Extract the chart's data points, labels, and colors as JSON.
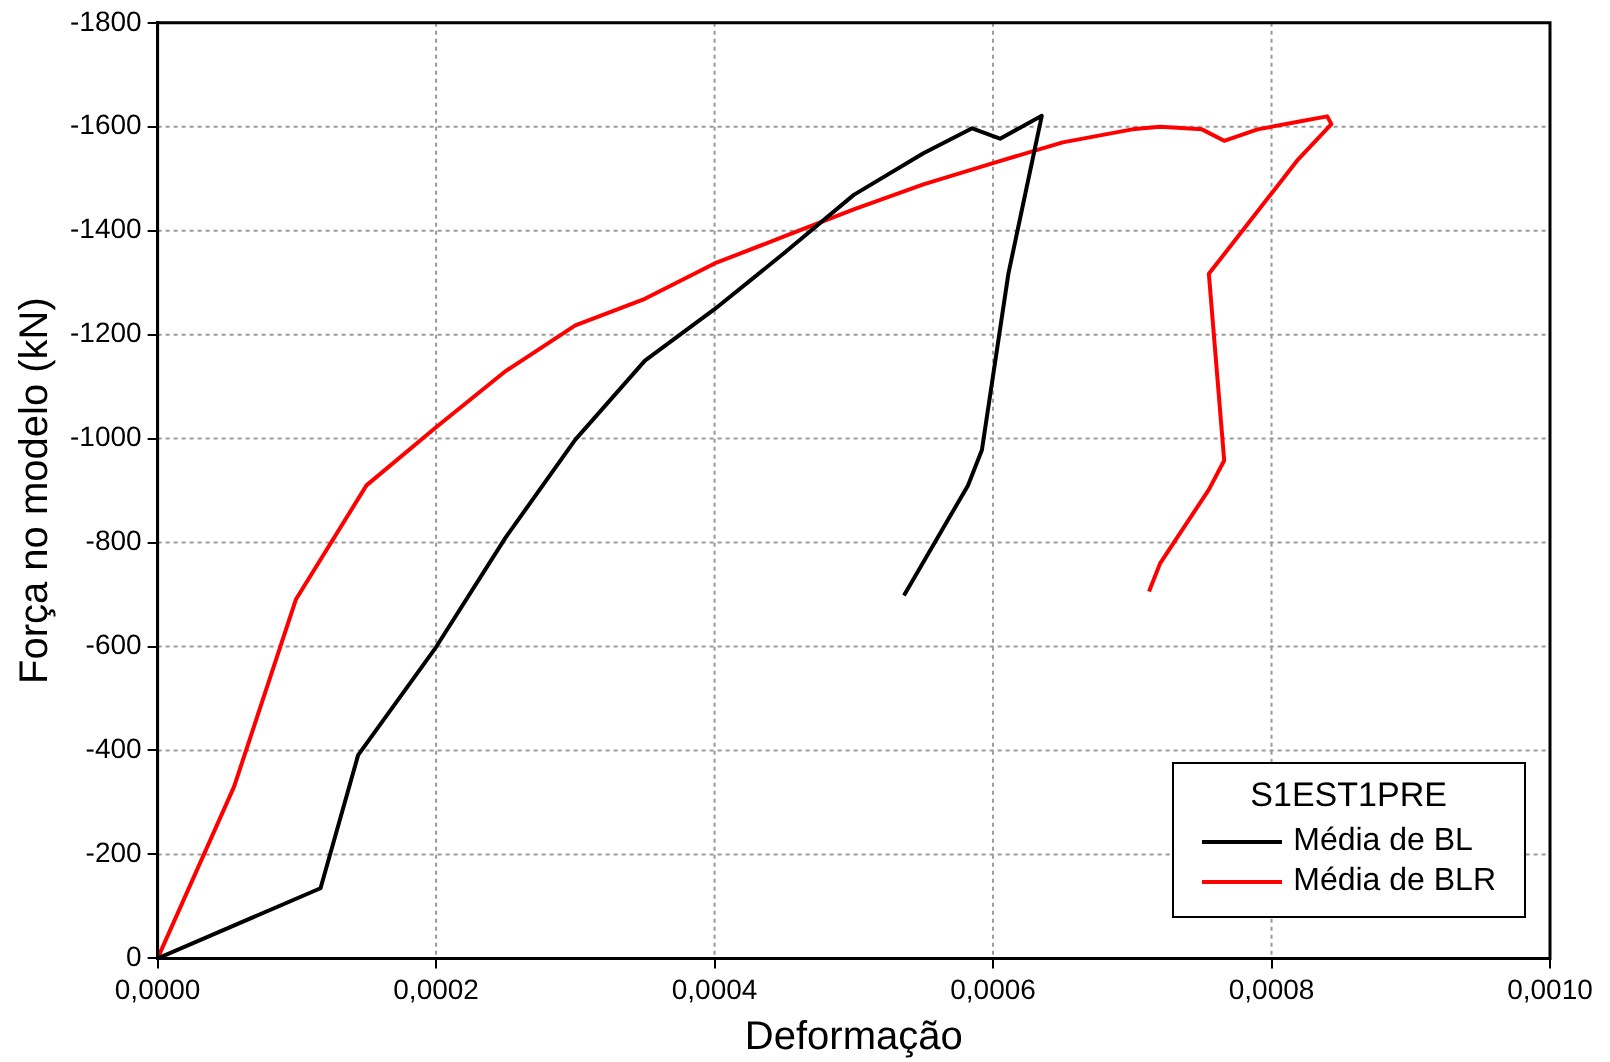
{
  "chart_data": {
    "type": "line",
    "xlabel": "Deformação",
    "ylabel": "Força no modelo (kN)",
    "legend_title": "S1EST1PRE",
    "legend": "bottom right",
    "grid": true,
    "marker": "none",
    "line_style": "solid",
    "xlim": [
      0,
      0.001
    ],
    "ylim": [
      0,
      -1800
    ],
    "xticks": [
      {
        "value": 0,
        "label": "0,0000"
      },
      {
        "value": 0.0002,
        "label": "0,0002"
      },
      {
        "value": 0.0004,
        "label": "0,0004"
      },
      {
        "value": 0.0006,
        "label": "0,0006"
      },
      {
        "value": 0.0008,
        "label": "0,0008"
      },
      {
        "value": 0.001,
        "label": "0,0010"
      }
    ],
    "yticks": [
      0,
      -200,
      -400,
      -600,
      -800,
      -1000,
      -1200,
      -1400,
      -1600,
      -1800
    ],
    "series": [
      {
        "name": "Média de BL",
        "color": "#000000",
        "x": [
          0,
          0.000117,
          0.000144,
          0.0002,
          0.00025,
          0.0003,
          0.00035,
          0.0004,
          0.00045,
          0.0005,
          0.00055,
          0.000585,
          0.000605,
          0.000635,
          0.000611,
          0.000592,
          0.000582,
          0.000536
        ],
        "values": [
          0,
          -135,
          -391,
          -599,
          -810,
          -998,
          -1150,
          -1249,
          -1357,
          -1469,
          -1549,
          -1597,
          -1577,
          -1621,
          -1317,
          -978,
          -910,
          -698
        ]
      },
      {
        "name": "Média de BLR",
        "color": "#ff0000",
        "x": [
          0,
          5.5e-05,
          9.94e-05,
          0.00015,
          0.0002,
          0.00025,
          0.0003,
          0.00035,
          0.0004,
          0.00045,
          0.0005,
          0.00055,
          0.0006,
          0.00065,
          0.0007,
          0.00072,
          0.00075,
          0.000766,
          0.00079,
          0.00082,
          0.00084,
          0.000843,
          0.000819,
          0.000755,
          0.000766,
          0.000755,
          0.00072,
          0.000712
        ],
        "values": [
          0,
          -331,
          -691,
          -910,
          -1022,
          -1130,
          -1218,
          -1269,
          -1337,
          -1389,
          -1441,
          -1489,
          -1530,
          -1570,
          -1595,
          -1600,
          -1595,
          -1573,
          -1595,
          -1610,
          -1620,
          -1605,
          -1537,
          -1317,
          -958,
          -902,
          -760,
          -706
        ]
      }
    ]
  }
}
